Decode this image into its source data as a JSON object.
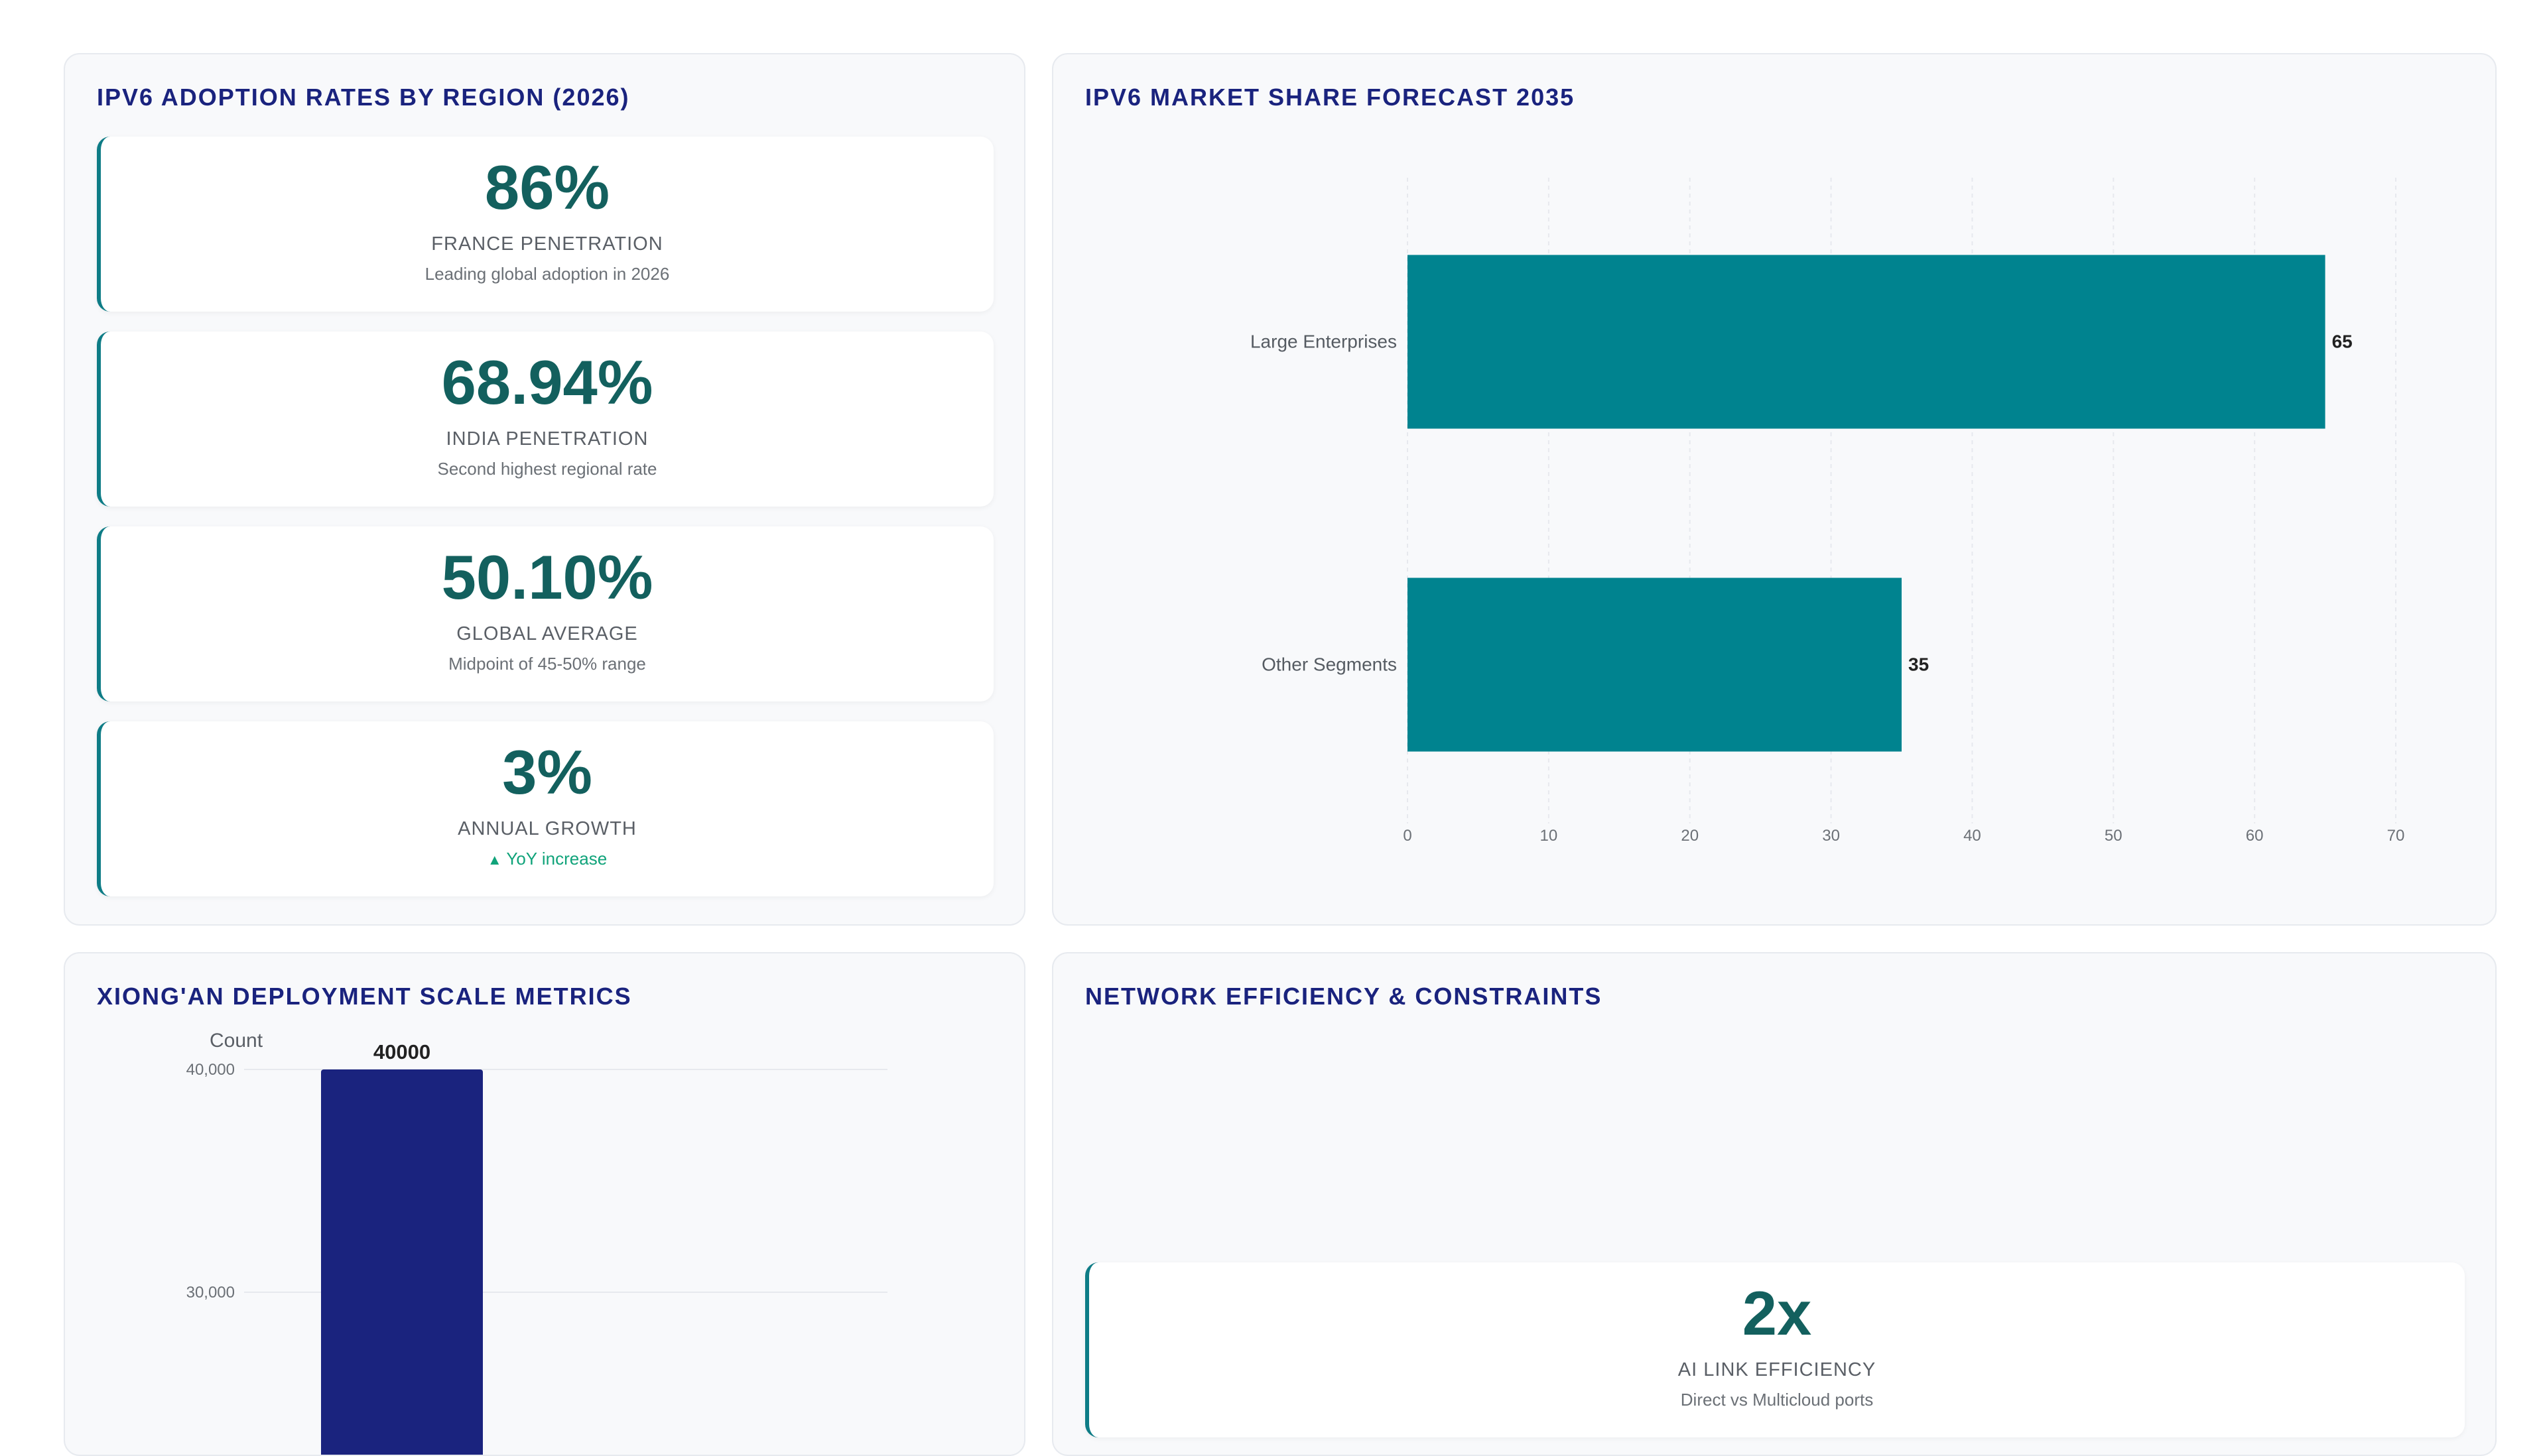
{
  "panels": {
    "adoption": {
      "title": "IPv6 Adoption Rates by Region (2026)",
      "cards": [
        {
          "value": "86%",
          "label": "France Penetration",
          "sub": "Leading global adoption in 2026"
        },
        {
          "value": "68.94%",
          "label": "India Penetration",
          "sub": "Second highest regional rate"
        },
        {
          "value": "50.10%",
          "label": "Global Average",
          "sub": "Midpoint of 45-50% range"
        },
        {
          "value": "3%",
          "label": "Annual Growth",
          "sub": "YoY increase",
          "trend_icon": "triangle-up-icon"
        }
      ]
    },
    "market_share": {
      "title": "IPv6 Market Share Forecast 2035"
    },
    "xiongan": {
      "title": "Xiong'an Deployment Scale Metrics"
    },
    "efficiency": {
      "title": "Network Efficiency & Constraints",
      "cards": [
        {
          "value": "2x",
          "label": "AI Link Efficiency",
          "sub": "Direct vs Multicloud ports"
        }
      ]
    }
  },
  "chart_data": [
    {
      "type": "bar",
      "orientation": "horizontal",
      "title": "IPv6 Market Share Forecast 2035",
      "categories": [
        "Large Enterprises",
        "Other Segments"
      ],
      "values": [
        65,
        35
      ],
      "xlim": [
        0,
        70
      ],
      "xticks": [
        "0",
        "10",
        "20",
        "30",
        "40",
        "50",
        "60",
        "70"
      ],
      "grid": true,
      "color": "#00838f"
    },
    {
      "type": "bar",
      "title": "Xiong'an Deployment Scale Metrics",
      "ylabel": "Count",
      "values": [
        40000
      ],
      "yticks": [
        "40,000",
        "30,000"
      ],
      "grid": true,
      "color": "#1a237e"
    }
  ]
}
